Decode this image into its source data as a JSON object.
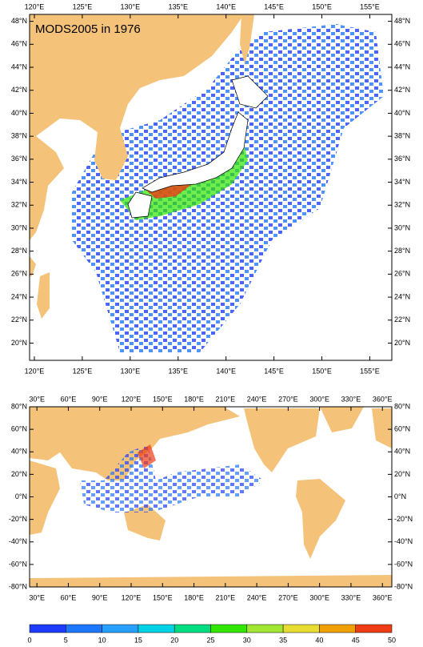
{
  "maps": [
    {
      "title": "MODS2005 in 1976",
      "xlim": [
        119.5,
        157.3
      ],
      "ylim": [
        18.5,
        48.6
      ],
      "lon_ticks": [
        {
          "value": 120,
          "label": "120°E"
        },
        {
          "value": 125,
          "label": "125°E"
        },
        {
          "value": 130,
          "label": "130°E"
        },
        {
          "value": 135,
          "label": "135°E"
        },
        {
          "value": 140,
          "label": "140°E"
        },
        {
          "value": 145,
          "label": "145°E"
        },
        {
          "value": 150,
          "label": "150°E"
        },
        {
          "value": 155,
          "label": "155°E"
        }
      ],
      "lat_ticks": [
        {
          "value": 20,
          "label": "20°N"
        },
        {
          "value": 22,
          "label": "22°N"
        },
        {
          "value": 24,
          "label": "24°N"
        },
        {
          "value": 26,
          "label": "26°N"
        },
        {
          "value": 28,
          "label": "28°N"
        },
        {
          "value": 30,
          "label": "30°N"
        },
        {
          "value": 32,
          "label": "32°N"
        },
        {
          "value": 34,
          "label": "34°N"
        },
        {
          "value": 36,
          "label": "36°N"
        },
        {
          "value": 38,
          "label": "38°N"
        },
        {
          "value": 40,
          "label": "40°N"
        },
        {
          "value": 42,
          "label": "42°N"
        },
        {
          "value": 44,
          "label": "44°N"
        },
        {
          "value": 46,
          "label": "46°N"
        },
        {
          "value": 48,
          "label": "48°N"
        }
      ]
    },
    {
      "xlim": [
        23,
        369
      ],
      "ylim": [
        -80,
        80
      ],
      "lon_ticks": [
        {
          "value": 30,
          "label": "30°E"
        },
        {
          "value": 60,
          "label": "60°E"
        },
        {
          "value": 90,
          "label": "90°E"
        },
        {
          "value": 120,
          "label": "120°E"
        },
        {
          "value": 150,
          "label": "150°E"
        },
        {
          "value": 180,
          "label": "180°E"
        },
        {
          "value": 210,
          "label": "210°E"
        },
        {
          "value": 240,
          "label": "240°E"
        },
        {
          "value": 270,
          "label": "270°E"
        },
        {
          "value": 300,
          "label": "300°E"
        },
        {
          "value": 330,
          "label": "330°E"
        },
        {
          "value": 360,
          "label": "360°E"
        }
      ],
      "lat_ticks": [
        {
          "value": -80,
          "label": "-80°N"
        },
        {
          "value": -60,
          "label": "-60°N"
        },
        {
          "value": -40,
          "label": "-40°N"
        },
        {
          "value": -20,
          "label": "-20°N"
        },
        {
          "value": 0,
          "label": "0°N"
        },
        {
          "value": 20,
          "label": "20°N"
        },
        {
          "value": 40,
          "label": "40°N"
        },
        {
          "value": 60,
          "label": "60°N"
        },
        {
          "value": 80,
          "label": "80°N"
        }
      ]
    }
  ],
  "colorbar": {
    "levels": [
      0,
      5,
      10,
      15,
      20,
      25,
      30,
      35,
      40,
      45,
      50
    ],
    "colors": [
      "#1e3cff",
      "#1e78ff",
      "#28a0ff",
      "#00d2e6",
      "#00dc82",
      "#32e600",
      "#a0e632",
      "#e6dc32",
      "#f0a000",
      "#f03c14"
    ]
  }
}
